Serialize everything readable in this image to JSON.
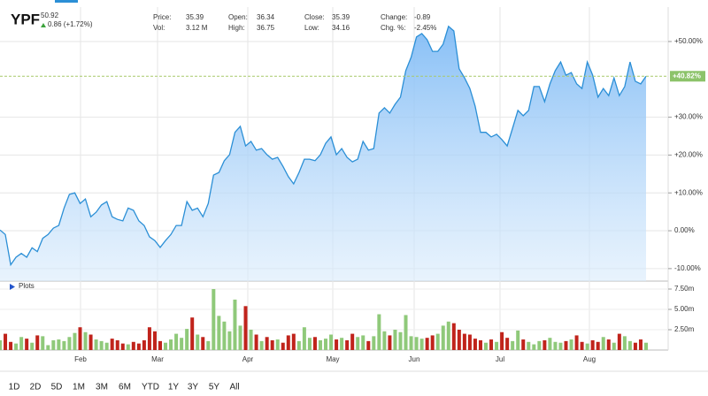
{
  "header": {
    "symbol": "YPF",
    "last": 50.92,
    "change": "0.86 (+1.72%)",
    "stats": [
      {
        "label": "Price:",
        "value": 35.39
      },
      {
        "label": "Vol:",
        "value": "3.12 M"
      },
      {
        "label": "Open:",
        "value": 36.34
      },
      {
        "label": "High:",
        "value": 36.75
      },
      {
        "label": "Close:",
        "value": 35.39
      },
      {
        "label": "Low:",
        "value": 34.16
      },
      {
        "label": "Change:",
        "value": -0.89
      },
      {
        "label": "Chg. %:",
        "value": "-2.45%"
      }
    ]
  },
  "chart_data": [
    {
      "type": "line",
      "name": "YPF",
      "color": "#2b8fd6",
      "values": [
        0.2,
        -1,
        -9,
        -7,
        -6,
        -7,
        -4.5,
        -5.5,
        -2,
        -1,
        0.7,
        1.4,
        6,
        9.6,
        10,
        7.2,
        8.4,
        3.7,
        4.9,
        6.8,
        7.7,
        3.7,
        3,
        2.6,
        6,
        5.4,
        2.6,
        1.4,
        -1.6,
        -2.6,
        -4.4,
        -2.6,
        -1,
        1.4,
        1.4,
        7.7,
        5.4,
        6,
        3.7,
        7.2,
        14.7,
        15.4,
        18.5,
        20.1,
        26,
        27.6,
        22.4,
        23.6,
        21.3,
        21.7,
        20.1,
        18.9,
        19.4,
        17,
        14.3,
        12.4,
        15.4,
        18.9,
        18.9,
        18.5,
        20.1,
        23.1,
        24.8,
        20.1,
        21.7,
        19.4,
        18.2,
        18.9,
        23.6,
        21.3,
        21.7,
        31.1,
        32.5,
        31.1,
        33.4,
        35.3,
        42.3,
        45.8,
        51.2,
        52.1,
        50.5,
        47.4,
        47.4,
        49.3,
        54,
        52.8,
        42.8,
        40.4,
        37.6,
        32.9,
        26,
        26,
        24.8,
        25.5,
        24.1,
        22.4,
        27.1,
        31.8,
        30.4,
        31.8,
        38.1,
        38.1,
        34.1,
        38.8,
        42.3,
        44.6,
        41.1,
        41.8,
        38.8,
        37.6,
        44.6,
        41.1,
        35.3,
        37.6,
        35.7,
        40.4,
        35.7,
        38.1,
        44.6,
        39.5,
        38.8,
        40.82
      ],
      "ylim": [
        -13.3,
        59.1
      ],
      "yticks": [
        {
          "value": 50,
          "label": "+50.00%"
        },
        {
          "value": 30,
          "label": "+30.00%"
        },
        {
          "value": 20,
          "label": "+20.00%"
        },
        {
          "value": 10,
          "label": "+10.00%"
        },
        {
          "value": 0,
          "label": "0.00%"
        },
        {
          "value": -10,
          "label": "-10.00%"
        }
      ],
      "current_value": {
        "value": 40.82,
        "label": "+40.82%"
      },
      "month_labels": [
        "Feb",
        "Mar",
        "Apr",
        "May",
        "Jun",
        "Jul",
        "Aug"
      ],
      "grid": true
    },
    {
      "type": "volume",
      "title": "Plots",
      "up_color": "#8fc97a",
      "down_color": "#c0231b",
      "values": [
        1.2,
        2.0,
        1.0,
        0.8,
        1.6,
        1.4,
        0.9,
        1.8,
        1.7,
        0.6,
        1.2,
        1.3,
        1.1,
        1.6,
        2.1,
        2.8,
        2.2,
        1.9,
        1.3,
        1.1,
        0.9,
        1.4,
        1.2,
        0.8,
        0.7,
        1.0,
        0.8,
        1.2,
        2.8,
        2.3,
        1.1,
        0.9,
        1.3,
        2.0,
        1.5,
        2.6,
        4.0,
        1.9,
        1.6,
        1.1,
        7.5,
        4.2,
        3.5,
        2.3,
        6.2,
        3.0,
        5.4,
        2.5,
        1.9,
        1.1,
        1.6,
        1.2,
        1.3,
        0.9,
        1.8,
        2.0,
        1.1,
        2.8,
        1.5,
        1.6,
        1.2,
        1.4,
        1.9,
        1.3,
        1.5,
        1.2,
        2.0,
        1.6,
        1.8,
        1.1,
        1.7,
        4.4,
        2.3,
        1.8,
        2.5,
        2.2,
        4.3,
        1.7,
        1.6,
        1.4,
        1.5,
        1.8,
        2.0,
        3.0,
        3.5,
        3.3,
        2.5,
        2.0,
        1.9,
        1.4,
        1.2,
        0.9,
        1.3,
        1.0,
        2.2,
        1.5,
        1.1,
        2.4,
        1.3,
        1.0,
        0.7,
        1.1,
        1.2,
        1.5,
        1.0,
        0.9,
        1.1,
        1.3,
        1.8,
        1.0,
        0.8,
        1.2,
        1.0,
        1.6,
        1.3,
        0.9,
        2.0,
        1.7,
        1.1,
        0.9,
        1.3,
        0.9
      ],
      "ylim": [
        0,
        8.26
      ],
      "yticks": [
        {
          "value": 7.5,
          "label": "7.50m"
        },
        {
          "value": 5,
          "label": "5.00m"
        },
        {
          "value": 2.5,
          "label": "2.50m"
        }
      ]
    }
  ],
  "range_buttons": [
    "1D",
    "2D",
    "5D",
    "1M",
    "3M",
    "6M",
    "YTD",
    "1Y",
    "3Y",
    "5Y",
    "All"
  ]
}
